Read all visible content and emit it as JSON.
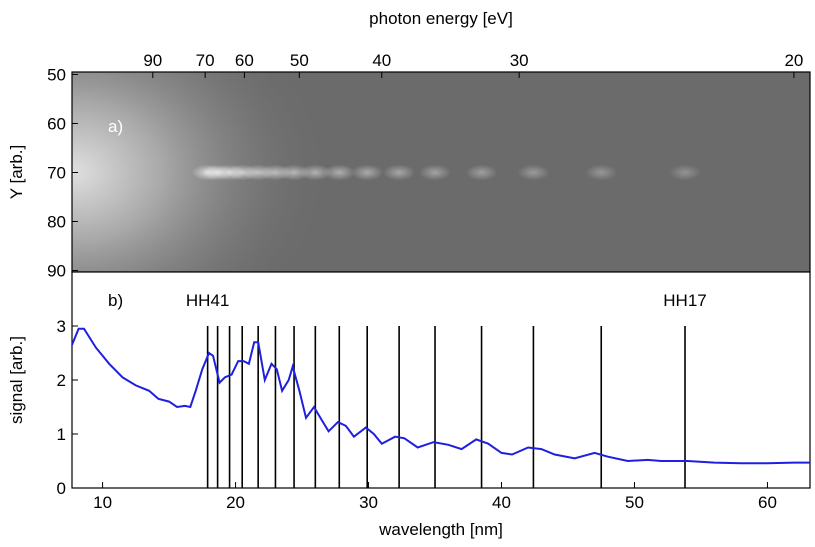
{
  "chart_data": [
    {
      "type": "image",
      "x2label": "photon energy [eV]",
      "x2ticks": [
        90,
        70,
        60,
        50,
        40,
        30,
        20
      ],
      "ylabel": "Y [arb.]",
      "panel_label": "a)",
      "xlim": [
        7.7,
        63.2
      ],
      "ylim": [
        49.5,
        90.3
      ],
      "yticks": [
        50,
        60,
        70,
        80,
        90
      ],
      "spots": {
        "x": [
          17.9,
          18.65,
          19.55,
          20.5,
          21.7,
          23.0,
          24.4,
          26.0,
          27.8,
          29.9,
          32.3,
          35.0,
          38.5,
          42.4,
          47.5,
          53.8
        ],
        "y": [
          70,
          70,
          70,
          70,
          70,
          70,
          70,
          70,
          70,
          70,
          70,
          70,
          70,
          70,
          70,
          70
        ]
      }
    },
    {
      "type": "line",
      "ylabel": "signal [arb.]",
      "xlabel": "wavelength [nm]",
      "panel_label": "b)",
      "xlim": [
        7.7,
        63.2
      ],
      "ylim": [
        0,
        4
      ],
      "xticks": [
        10,
        20,
        30,
        40,
        50,
        60
      ],
      "yticks": [
        0,
        1,
        2,
        3
      ],
      "annotations": [
        "HH41",
        "HH17"
      ],
      "harmonics": {
        "x": [
          17.9,
          18.65,
          19.55,
          20.5,
          21.7,
          23.0,
          24.4,
          26.0,
          27.8,
          29.9,
          32.3,
          35.0,
          38.5,
          42.4,
          47.5,
          53.8
        ],
        "height": 3
      },
      "series": [
        {
          "color": "#1f1fe0",
          "x": [
            7.7,
            8.2,
            8.6,
            9.5,
            10.5,
            11.5,
            12.5,
            13.5,
            14.2,
            15,
            15.6,
            16.2,
            16.6,
            17.0,
            17.5,
            18.0,
            18.3,
            18.8,
            19.2,
            19.7,
            20.2,
            20.6,
            21.0,
            21.4,
            21.7,
            22.2,
            22.7,
            23.1,
            23.5,
            24.0,
            24.3,
            24.8,
            25.3,
            25.9,
            26.5,
            27.0,
            27.7,
            28.3,
            28.9,
            29.8,
            30.4,
            31.0,
            32.0,
            32.7,
            33.7,
            34.9,
            36.0,
            37.0,
            38.1,
            39.0,
            40.0,
            40.8,
            42.0,
            43.0,
            44.0,
            45.5,
            47.0,
            48.0,
            49.5,
            51,
            52,
            54,
            56,
            58,
            60,
            62,
            63.2
          ],
          "values": [
            2.65,
            2.95,
            2.95,
            2.6,
            2.3,
            2.05,
            1.9,
            1.8,
            1.65,
            1.6,
            1.5,
            1.52,
            1.5,
            1.8,
            2.2,
            2.5,
            2.45,
            1.95,
            2.05,
            2.1,
            2.35,
            2.35,
            2.3,
            2.7,
            2.7,
            2.0,
            2.3,
            2.2,
            1.8,
            2.0,
            2.25,
            1.8,
            1.3,
            1.5,
            1.25,
            1.05,
            1.22,
            1.15,
            0.95,
            1.12,
            1.0,
            0.82,
            0.95,
            0.92,
            0.75,
            0.85,
            0.8,
            0.72,
            0.9,
            0.82,
            0.65,
            0.62,
            0.75,
            0.72,
            0.62,
            0.55,
            0.65,
            0.58,
            0.5,
            0.52,
            0.5,
            0.5,
            0.47,
            0.46,
            0.46,
            0.47,
            0.47
          ]
        }
      ]
    }
  ]
}
